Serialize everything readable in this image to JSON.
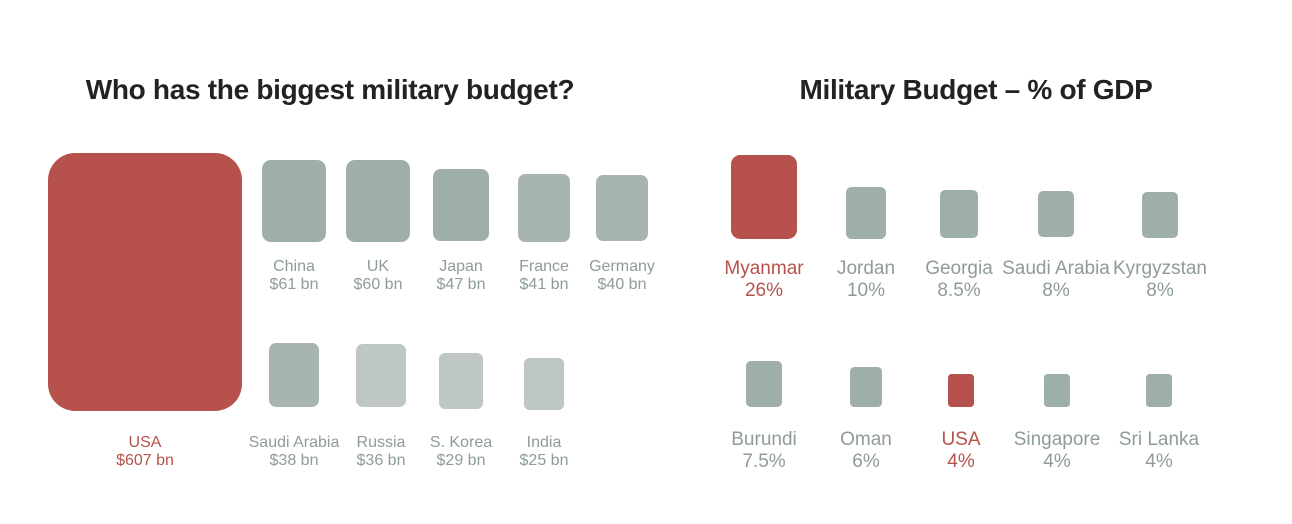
{
  "colors": {
    "highlight": "#b6524b",
    "tier1": "#9eaea9",
    "tier2": "#a7b4b0",
    "tier3": "#bec7c4",
    "text_muted": "#8e9c99",
    "title": "#222222"
  },
  "chart_data": [
    {
      "type": "area",
      "title": "Who has the biggest military budget?",
      "unit": "$ bn",
      "items": [
        {
          "name": "USA",
          "value": 607,
          "label": "$607 bn",
          "highlight": true
        },
        {
          "name": "China",
          "value": 61,
          "label": "$61 bn"
        },
        {
          "name": "UK",
          "value": 60,
          "label": "$60 bn"
        },
        {
          "name": "Japan",
          "value": 47,
          "label": "$47 bn"
        },
        {
          "name": "France",
          "value": 41,
          "label": "$41 bn"
        },
        {
          "name": "Germany",
          "value": 40,
          "label": "$40 bn"
        },
        {
          "name": "Saudi Arabia",
          "value": 38,
          "label": "$38 bn"
        },
        {
          "name": "Russia",
          "value": 36,
          "label": "$36 bn"
        },
        {
          "name": "S. Korea",
          "value": 29,
          "label": "$29 bn"
        },
        {
          "name": "India",
          "value": 25,
          "label": "$25 bn"
        }
      ]
    },
    {
      "type": "area",
      "title": "Military Budget – % of GDP",
      "unit": "%",
      "items": [
        {
          "name": "Myanmar",
          "value": 26,
          "label": "26%",
          "highlight": true
        },
        {
          "name": "Jordan",
          "value": 10,
          "label": "10%"
        },
        {
          "name": "Georgia",
          "value": 8.5,
          "label": "8.5%"
        },
        {
          "name": "Saudi Arabia",
          "value": 8,
          "label": "8%"
        },
        {
          "name": "Kyrgyzstan",
          "value": 8,
          "label": "8%"
        },
        {
          "name": "Burundi",
          "value": 7.5,
          "label": "7.5%"
        },
        {
          "name": "Oman",
          "value": 6,
          "label": "6%"
        },
        {
          "name": "USA",
          "value": 4,
          "label": "4%",
          "highlight": true
        },
        {
          "name": "Singapore",
          "value": 4,
          "label": "4%"
        },
        {
          "name": "Sri Lanka",
          "value": 4,
          "label": "4%"
        }
      ]
    }
  ]
}
